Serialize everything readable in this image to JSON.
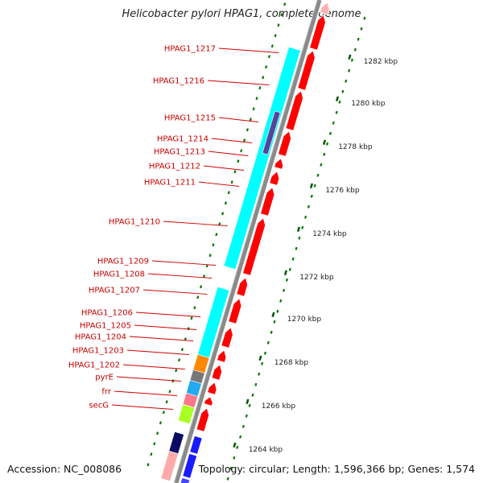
{
  "title": "Helicobacter pylori HPAG1, complete genome",
  "accession": "Accession: NC_008086",
  "summary": "Topology: circular; Length: 1,596,366 bp; Genes: 1,574",
  "colors": {
    "forward_cds": "#ff0000",
    "reverse_cds": "#00ffff",
    "backbone": "#888888",
    "tick": "#007700",
    "gene_label": "#cc0000"
  },
  "kbp_ticks": [
    "1282 kbp",
    "1280 kbp",
    "1278 kbp",
    "1276 kbp",
    "1274 kbp",
    "1272 kbp",
    "1270 kbp",
    "1268 kbp",
    "1266 kbp",
    "1264 kbp"
  ],
  "gene_labels": [
    "HPAG1_1217",
    "HPAG1_1216",
    "HPAG1_1215",
    "HPAG1_1214",
    "HPAG1_1213",
    "HPAG1_1212",
    "HPAG1_1211",
    "HPAG1_1210",
    "HPAG1_1209",
    "HPAG1_1208",
    "HPAG1_1207",
    "HPAG1_1206",
    "HPAG1_1205",
    "HPAG1_1204",
    "HPAG1_1203",
    "HPAG1_1202",
    "pyrE",
    "frr",
    "secG"
  ]
}
